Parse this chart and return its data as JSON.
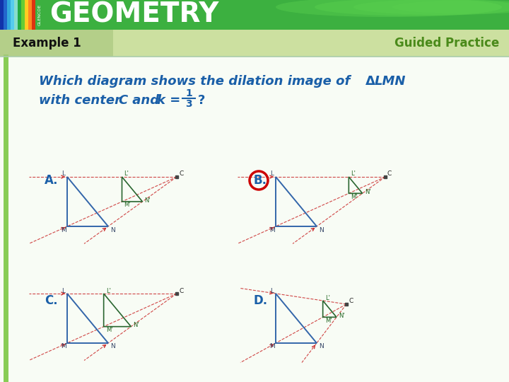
{
  "title": "GEOMETRY",
  "subtitle_left": "Example 1",
  "subtitle_right": "Guided Practice",
  "header_green": "#3cb040",
  "header_green2": "#55c045",
  "subheader_green_light": "#cce0a0",
  "subheader_green_dark": "#aac880",
  "body_bg": "#ffffff",
  "body_bg2": "#f4f8f0",
  "blue_text": "#1a5fa8",
  "dark_text": "#111111",
  "green_text": "#4a8a1a",
  "answer_red": "#cc0000",
  "tri_blue": "#3366aa",
  "tri_green_dark": "#2a6630",
  "tri_green_light": "#44aa55",
  "line_red": "#cc3333",
  "pt_gray": "#444444",
  "left_stripe": "#88cc55"
}
